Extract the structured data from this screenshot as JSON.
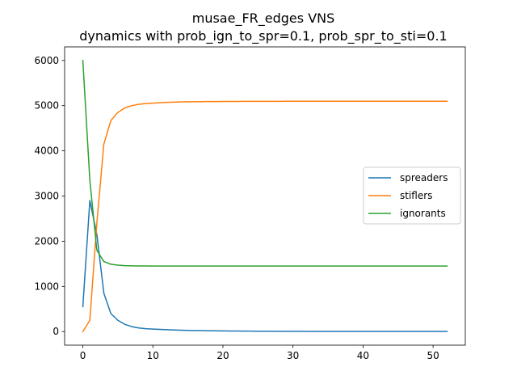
{
  "chart_data": {
    "type": "line",
    "title": "musae_FR_edges VNS",
    "subtitle": "dynamics with prob_ign_to_spr=0.1, prob_spr_to_sti=0.1",
    "xlabel": "",
    "ylabel": "",
    "xlim": [
      -2.6,
      54.6
    ],
    "ylim": [
      -300,
      6300
    ],
    "xticks": [
      0,
      10,
      20,
      30,
      40,
      50
    ],
    "yticks": [
      0,
      1000,
      2000,
      3000,
      4000,
      5000,
      6000
    ],
    "grid": false,
    "legend": "center-right",
    "x": [
      0,
      1,
      2,
      3,
      4,
      5,
      6,
      7,
      8,
      9,
      10,
      11,
      12,
      13,
      14,
      15,
      16,
      17,
      18,
      19,
      20,
      21,
      22,
      23,
      24,
      25,
      26,
      27,
      28,
      29,
      30,
      31,
      32,
      33,
      34,
      35,
      36,
      37,
      38,
      39,
      40,
      41,
      42,
      43,
      44,
      45,
      46,
      47,
      48,
      49,
      50,
      51,
      52
    ],
    "series": [
      {
        "name": "spreaders",
        "color": "#1f77b4",
        "values": [
          550,
          2900,
          2150,
          850,
          400,
          250,
          160,
          110,
          80,
          65,
          55,
          48,
          42,
          36,
          31,
          27,
          24,
          21,
          19,
          17,
          15,
          13,
          12,
          11,
          10,
          9,
          8,
          8,
          7,
          7,
          6,
          6,
          5,
          5,
          5,
          5,
          4,
          4,
          4,
          4,
          4,
          3,
          3,
          3,
          3,
          3,
          3,
          3,
          3,
          3,
          3,
          3,
          3
        ]
      },
      {
        "name": "stiflers",
        "color": "#ff7f0e",
        "values": [
          0,
          250,
          2400,
          4150,
          4670,
          4850,
          4950,
          5000,
          5030,
          5045,
          5055,
          5065,
          5072,
          5078,
          5082,
          5085,
          5087,
          5089,
          5090,
          5091,
          5092,
          5093,
          5093,
          5094,
          5094,
          5095,
          5095,
          5095,
          5095,
          5096,
          5096,
          5096,
          5096,
          5096,
          5096,
          5096,
          5096,
          5096,
          5096,
          5096,
          5096,
          5096,
          5096,
          5096,
          5096,
          5096,
          5096,
          5096,
          5096,
          5096,
          5096,
          5096,
          5096
        ]
      },
      {
        "name": "ignorants",
        "color": "#2ca02c",
        "values": [
          6000,
          3350,
          1800,
          1550,
          1490,
          1470,
          1460,
          1455,
          1453,
          1452,
          1451,
          1451,
          1450,
          1450,
          1450,
          1450,
          1450,
          1450,
          1450,
          1450,
          1450,
          1450,
          1450,
          1450,
          1450,
          1450,
          1450,
          1450,
          1450,
          1450,
          1450,
          1450,
          1450,
          1450,
          1450,
          1450,
          1450,
          1450,
          1450,
          1450,
          1450,
          1450,
          1450,
          1450,
          1450,
          1450,
          1450,
          1450,
          1450,
          1450,
          1450,
          1450,
          1450
        ]
      }
    ]
  }
}
